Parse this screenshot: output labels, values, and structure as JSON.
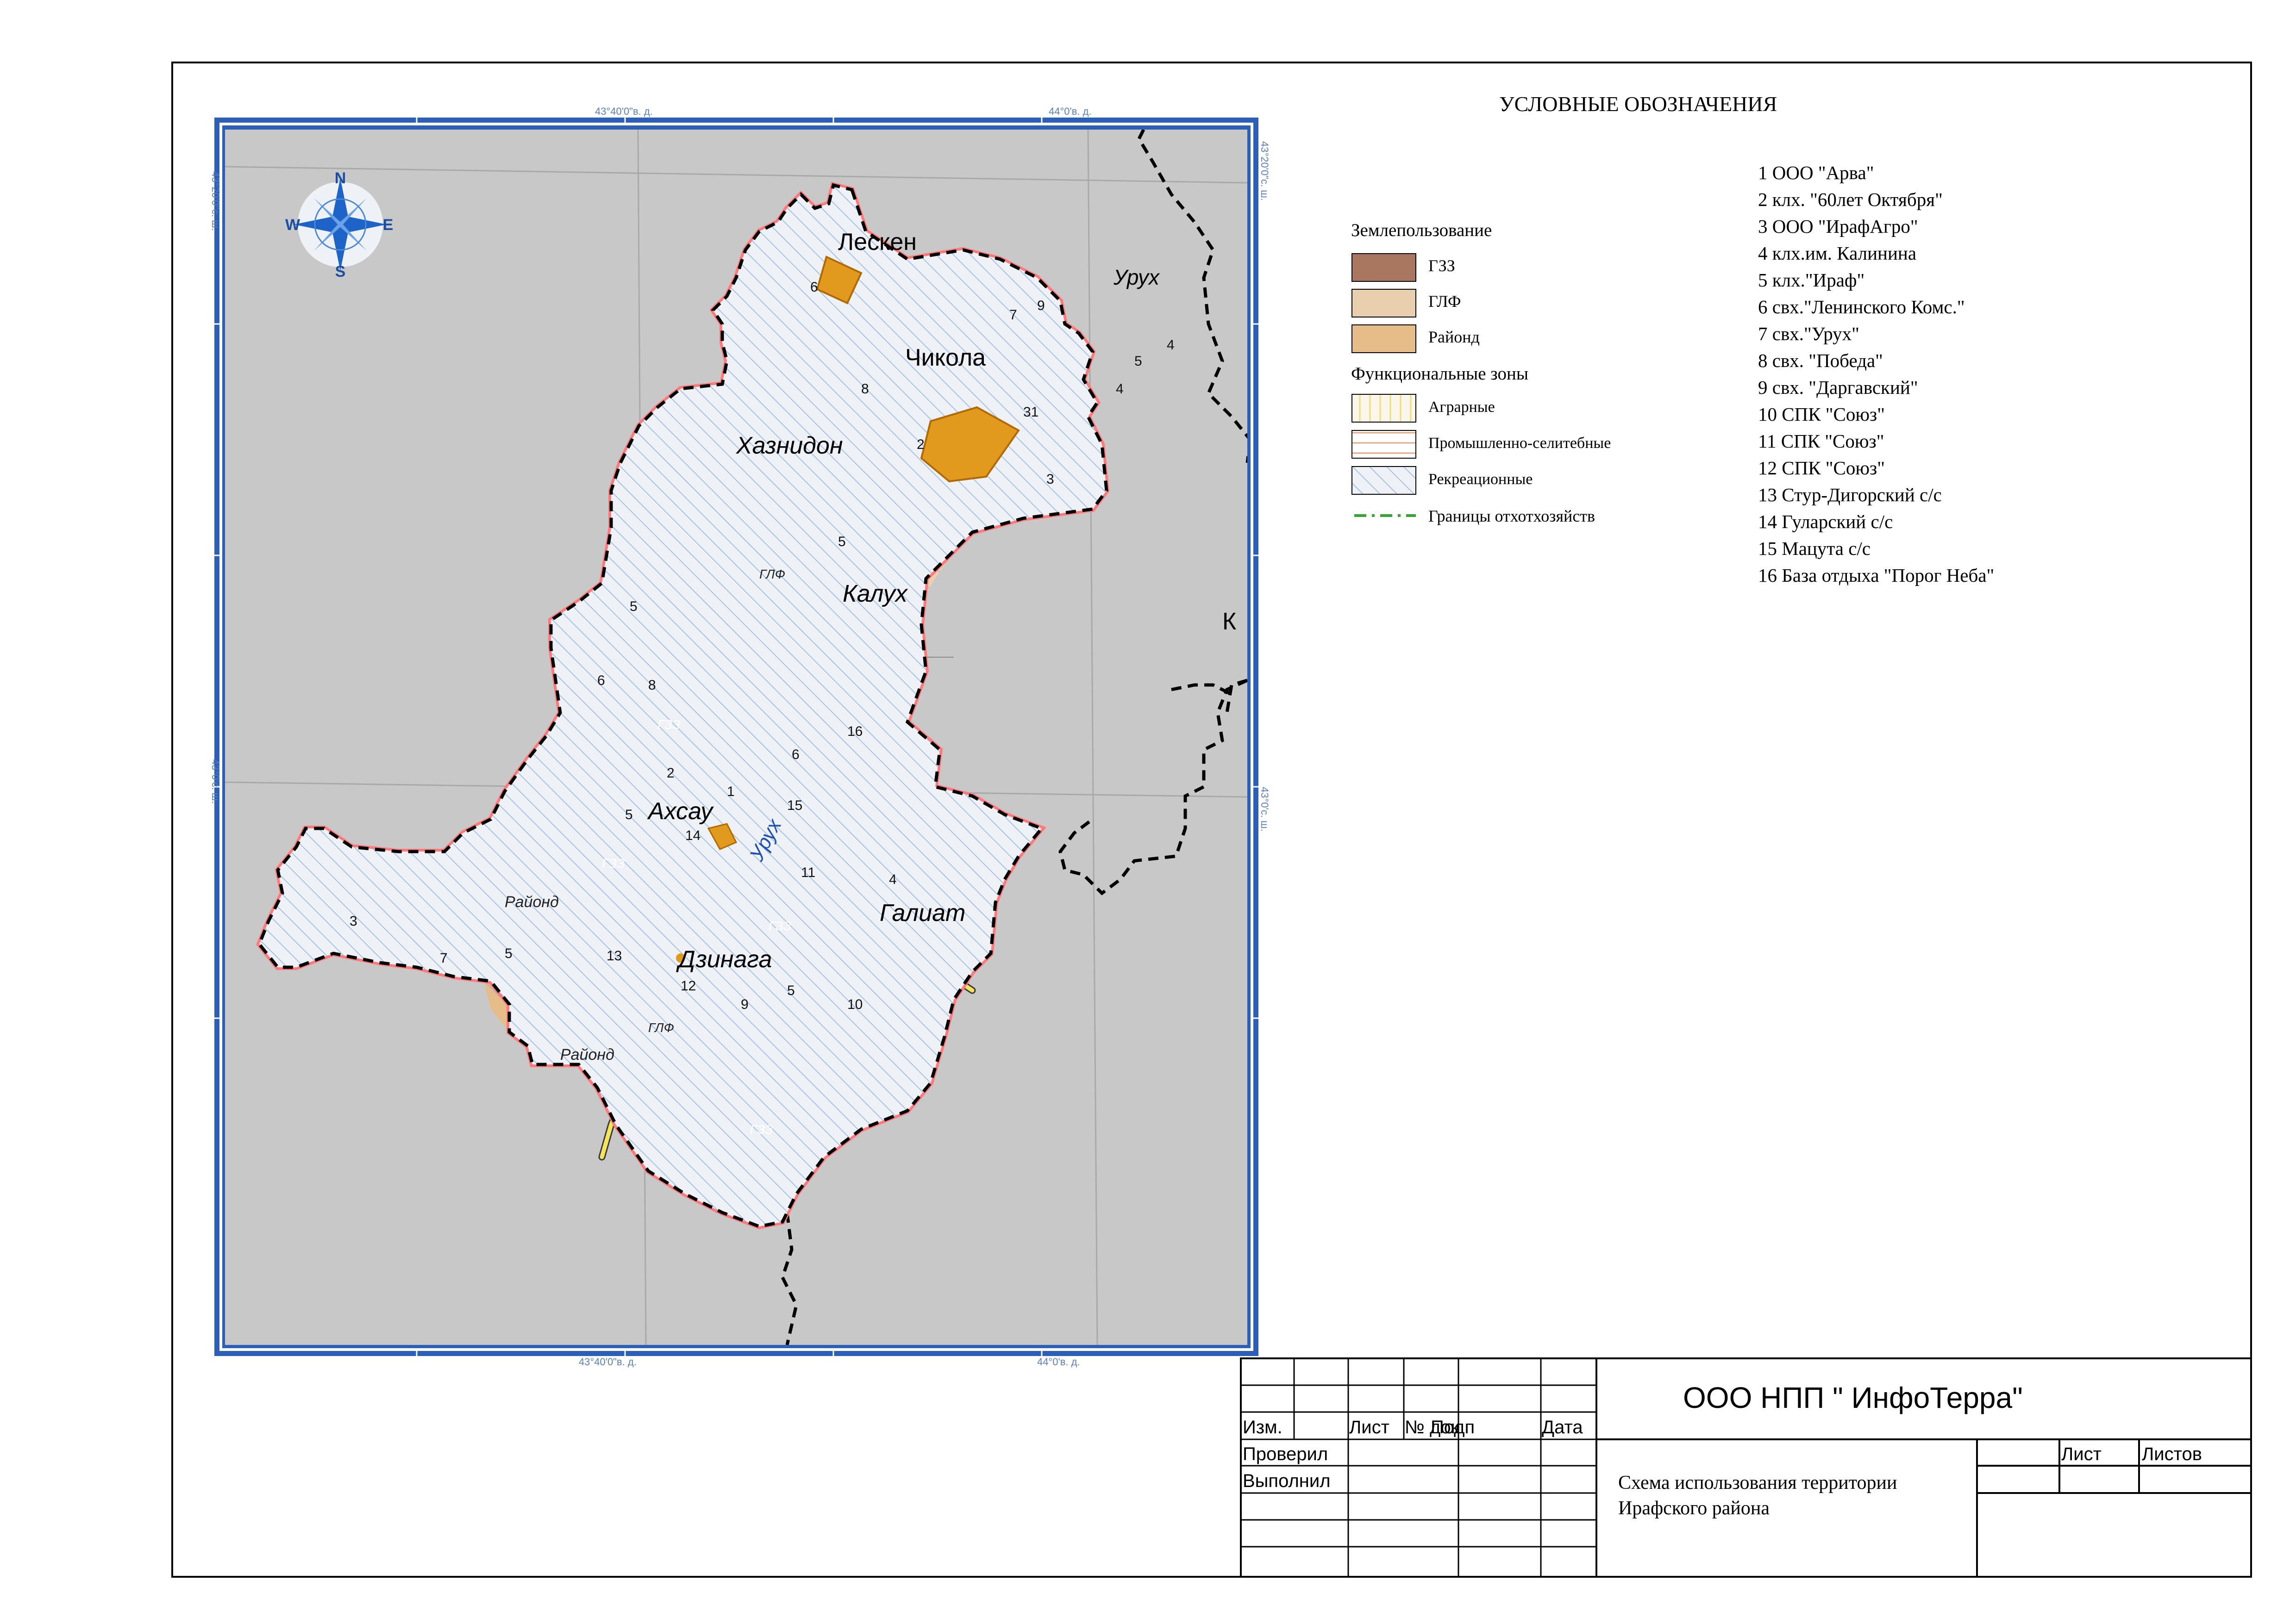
{
  "legend": {
    "title": "УСЛОВНЫЕ ОБОЗНАЧЕНИЯ",
    "land_use_title": "Землепользование",
    "land_use": [
      {
        "label": "ГЗЗ",
        "color": "#a9765f"
      },
      {
        "label": "ГЛФ",
        "color": "#e9cfae"
      },
      {
        "label": "Районд",
        "color": "#e6bd89"
      }
    ],
    "zones_title": "Функциональные зоны",
    "zones": [
      {
        "label": "Аграрные",
        "pattern": "yellow-vertical-hatch"
      },
      {
        "label": "Промышленно-селитебные",
        "pattern": "orange-horizontal-hatch"
      },
      {
        "label": "Рекреационные",
        "pattern": "blue-diagonal-hatch"
      }
    ],
    "border_item": {
      "label": "Границы отхотхозяйств",
      "color": "#3aa336"
    }
  },
  "farms": [
    "1 ООО \"Арва\"",
    "2 клх. \"60лет Октября\"",
    "3 ООО \"ИрафАгро\"",
    "4 клх.им. Калинина",
    "5  клх.\"Ираф\"",
    "6 свх.\"Ленинского Комс.\"",
    "7 свх.\"Урух\"",
    "8 свх. \"Победа\"",
    "9 свх. \"Даргавский\"",
    "10 СПК \"Союз\"",
    "11 СПК \"Союз\"",
    "12 СПК \"Союз\"",
    "13 Стур-Дигорский с/с",
    "14 Гуларский с/с",
    "15 Мацута с/с",
    "16 База отдыха \"Порог Неба\""
  ],
  "map": {
    "compass": {
      "n": "N",
      "s": "S",
      "e": "E",
      "w": "W"
    },
    "graticule_top": [
      "43°40'0\"в. д.",
      "44°0'в. д."
    ],
    "graticule_bottom": [
      "43°40'0\"в. д.",
      "44°0'в. д."
    ],
    "graticule_left": [
      "43°20'0\"с. ш.",
      "43°0'с. ш."
    ],
    "graticule_right": [
      "43°20'0\"с. ш.",
      "43°0'с. ш."
    ],
    "settlements": [
      "Лескен",
      "Чикола",
      "Хазнидон",
      "Калух",
      "Ахсау",
      "Галиат",
      "Дзинага",
      "Урух"
    ],
    "river_label": "Урух",
    "edge_label": "К",
    "zone_labels": {
      "gzz": "ГЗЗ",
      "glf": "ГЛФ",
      "rayfond": "Районд"
    },
    "farm_numbers": [
      "6",
      "8",
      "7",
      "9",
      "5",
      "4",
      "4",
      "31",
      "2",
      "3",
      "5",
      "5",
      "6",
      "8",
      "2",
      "16",
      "6",
      "1",
      "15",
      "5",
      "14",
      "4",
      "11",
      "3",
      "7",
      "5",
      "13",
      "12",
      "9",
      "5",
      "10"
    ]
  },
  "title_block": {
    "organization": "ООО НПП \" ИнфоТерра\"",
    "headers": [
      "Изм.",
      "Лист",
      "№ док",
      "Подп",
      "Дата"
    ],
    "rows": [
      "Проверил",
      "Выполнил"
    ],
    "sheet_headers": [
      "Лист",
      "Листов"
    ],
    "drawing_title_line1": "Схема  использования территории",
    "drawing_title_line2": "Ирафского района"
  },
  "colors": {
    "background_grey": "#c8c8c8",
    "frame_blue": "#2b5fb8",
    "gzz": "#a9765f",
    "glf": "#e9cfae",
    "rayfond": "#e6bd89",
    "recreation": "#8fb4e3",
    "agrarian": "#f2dc7a",
    "settlement": "#e19a1e",
    "road": "#f5e35c",
    "boundary_green": "#3aa336"
  }
}
